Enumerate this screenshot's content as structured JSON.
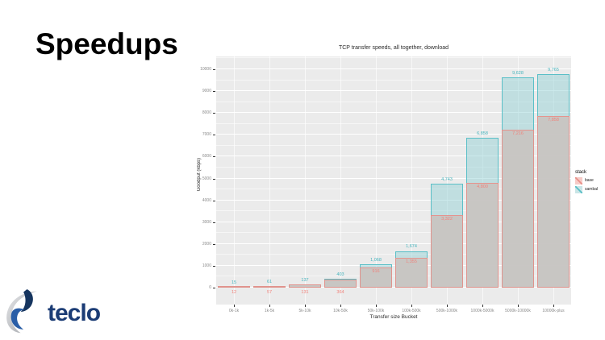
{
  "slide": {
    "heading": "Speedups"
  },
  "logo": {
    "text": "teclo"
  },
  "chart": {
    "title": "TCP transfer speeds, all together, download",
    "xlabel": "Transfer size Bucket",
    "ylabel": "Goodput (kbps)",
    "legend": {
      "title": "stack"
    },
    "colors": {
      "panel_bg": "#ebebeb",
      "base_fill": "#c9c5c2",
      "base_stroke": "#e8918a",
      "base_label": "#f0837c",
      "base_key_fill": "#f6cbc7",
      "sambal_fill": "rgba(139,206,211,0.45)",
      "sambal_stroke": "#5abfc7",
      "sambal_label": "#45b4bd",
      "sambal_key_fill": "#c9e5e6",
      "logo_blue": "#1b3c75"
    }
  },
  "chart_data": {
    "type": "bar",
    "title": "TCP transfer speeds, all together, download",
    "xlabel": "Transfer size Bucket",
    "ylabel": "Goodput (kbps)",
    "categories": [
      "0k-1k",
      "1k-5k",
      "5k-10k",
      "10k-50k",
      "50k-100k",
      "100k-500k",
      "500k-1000k",
      "1000k-5000k",
      "5000k-10000k",
      "10000k-plus"
    ],
    "series": [
      {
        "name": "base",
        "values": [
          12,
          57,
          131,
          364,
          916,
          1355,
          3322,
          4800,
          7216,
          7858
        ]
      },
      {
        "name": "sambal",
        "values": [
          15,
          61,
          137,
          403,
          1068,
          1674,
          4743,
          6858,
          9628,
          9765
        ]
      }
    ],
    "ylim": [
      0,
      10590
    ],
    "yticks": [
      0,
      1000,
      2000,
      3000,
      4000,
      5000,
      6000,
      7000,
      8000,
      9000,
      10000
    ],
    "legend_title": "stack",
    "legend_position": "right",
    "grid": true,
    "layout": "overlaid bars (position identity), sambal behind base"
  }
}
